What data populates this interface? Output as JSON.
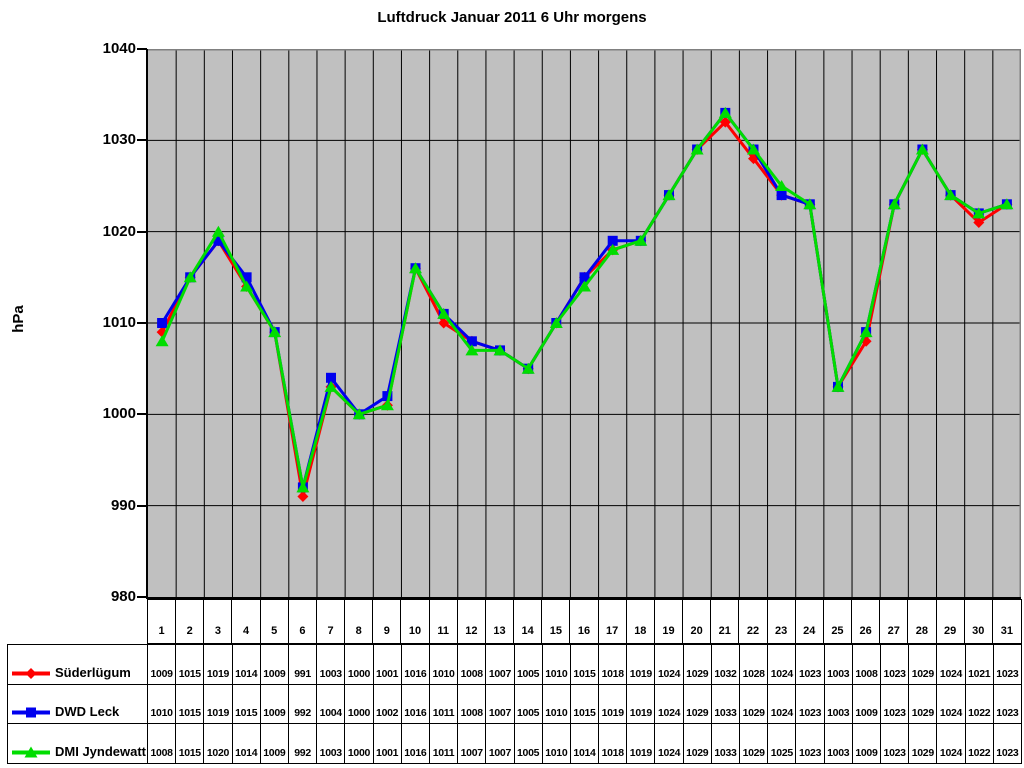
{
  "chart_data": {
    "type": "line",
    "title": "Luftdruck Januar 2011 6 Uhr morgens",
    "ylabel": "hPa",
    "xlabel": "",
    "ylim": [
      980,
      1040
    ],
    "y_ticks": [
      1040,
      1030,
      1020,
      1010,
      1000,
      990,
      980
    ],
    "grid": true,
    "plot_bg": "#c0c0c0",
    "grid_color": "#000000",
    "frame_color": "#808080",
    "legend_position": "table-left",
    "categories": [
      "1",
      "2",
      "3",
      "4",
      "5",
      "6",
      "7",
      "8",
      "9",
      "10",
      "11",
      "12",
      "13",
      "14",
      "15",
      "16",
      "17",
      "18",
      "19",
      "20",
      "21",
      "22",
      "23",
      "24",
      "25",
      "26",
      "27",
      "28",
      "29",
      "30",
      "31"
    ],
    "series": [
      {
        "name": "Süderlügum",
        "color": "#ff0000",
        "marker": "diamond",
        "values": [
          1009,
          1015,
          1019,
          1014,
          1009,
          991,
          1003,
          1000,
          1001,
          1016,
          1010,
          1008,
          1007,
          1005,
          1010,
          1015,
          1018,
          1019,
          1024,
          1029,
          1032,
          1028,
          1024,
          1023,
          1003,
          1008,
          1023,
          1029,
          1024,
          1021,
          1023
        ]
      },
      {
        "name": "DWD Leck",
        "color": "#0000ee",
        "marker": "square",
        "values": [
          1010,
          1015,
          1019,
          1015,
          1009,
          992,
          1004,
          1000,
          1002,
          1016,
          1011,
          1008,
          1007,
          1005,
          1010,
          1015,
          1019,
          1019,
          1024,
          1029,
          1033,
          1029,
          1024,
          1023,
          1003,
          1009,
          1023,
          1029,
          1024,
          1022,
          1023
        ]
      },
      {
        "name": "DMI Jyndewatt",
        "color": "#00dd00",
        "marker": "triangle",
        "values": [
          1008,
          1015,
          1020,
          1014,
          1009,
          992,
          1003,
          1000,
          1001,
          1016,
          1011,
          1007,
          1007,
          1005,
          1010,
          1014,
          1018,
          1019,
          1024,
          1029,
          1033,
          1029,
          1025,
          1023,
          1003,
          1009,
          1023,
          1029,
          1024,
          1022,
          1023
        ]
      }
    ]
  }
}
